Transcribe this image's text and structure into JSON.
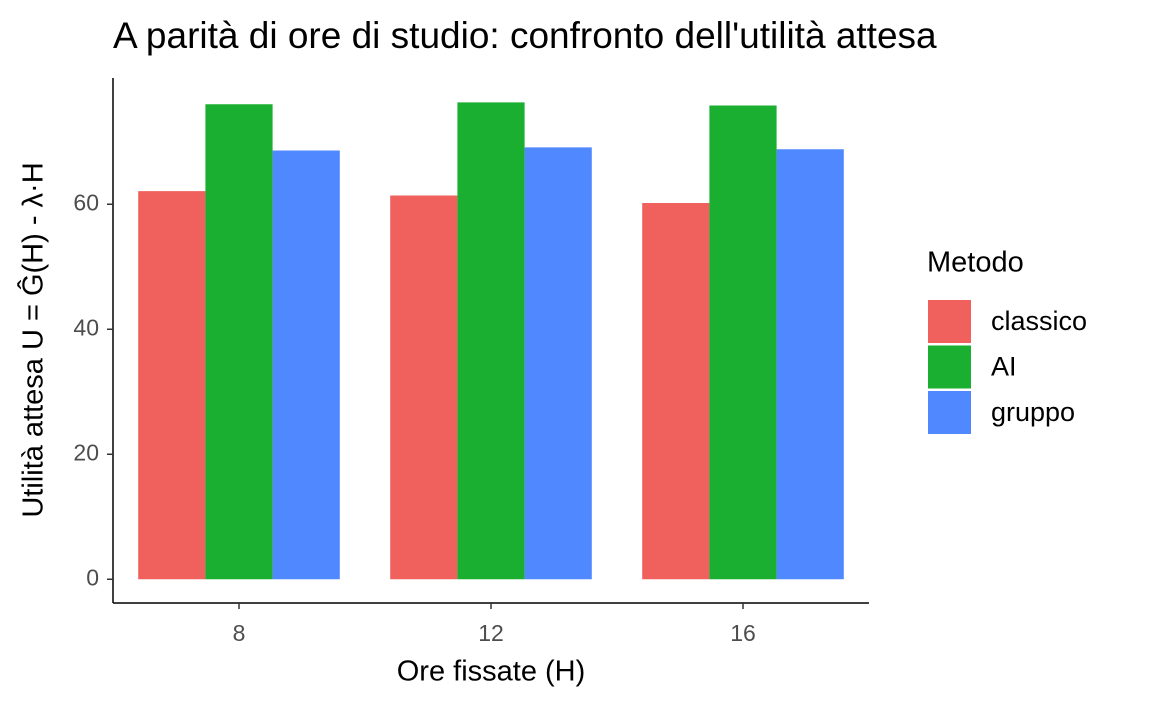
{
  "chart_data": {
    "type": "bar",
    "title": "A parità di ore di studio: confronto dell'utilità attesa",
    "x_label": "Ore fissate (H)",
    "y_label": "Utilità attesa U = Ĝ(H) - λ·H",
    "legend_title": "Metodo",
    "legend_position": "right",
    "categories": [
      "8",
      "12",
      "16"
    ],
    "series": [
      {
        "name": "classico",
        "color": "#f0605c",
        "values": [
          62.1,
          61.4,
          60.2
        ]
      },
      {
        "name": "AI",
        "color": "#1aaf31",
        "values": [
          76.0,
          76.3,
          75.8
        ]
      },
      {
        "name": "gruppo",
        "color": "#4f88ff",
        "values": [
          68.6,
          69.1,
          68.8
        ]
      }
    ],
    "ylim": [
      -3.8,
      80.2
    ],
    "yticks": [
      0,
      20,
      40,
      60
    ],
    "grid": false
  }
}
